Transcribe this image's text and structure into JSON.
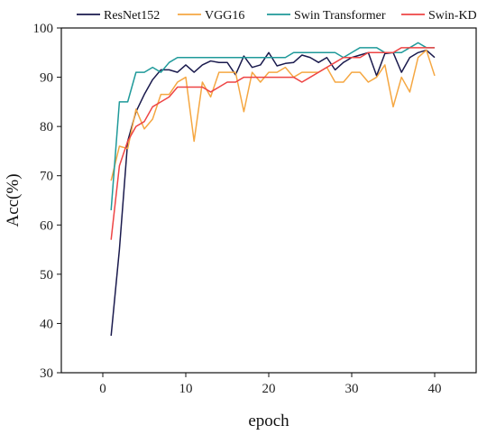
{
  "chart_data": {
    "type": "line",
    "xlabel": "epoch",
    "ylabel": "Acc(%)",
    "xlim": [
      -5,
      45
    ],
    "ylim": [
      30,
      100
    ],
    "xticks": [
      0,
      10,
      20,
      30,
      40
    ],
    "yticks": [
      30,
      40,
      50,
      60,
      70,
      80,
      90,
      100
    ],
    "grid": false,
    "legend_position": "top",
    "x": [
      1,
      2,
      3,
      4,
      5,
      6,
      7,
      8,
      9,
      10,
      11,
      12,
      13,
      14,
      15,
      16,
      17,
      18,
      19,
      20,
      21,
      22,
      23,
      24,
      25,
      26,
      27,
      28,
      29,
      30,
      31,
      32,
      33,
      34,
      35,
      36,
      37,
      38,
      39,
      40
    ],
    "series": [
      {
        "name": "ResNet152",
        "color": "#1a1a4d",
        "values": [
          37.5,
          55,
          77,
          83,
          86.5,
          89.5,
          91.5,
          91.5,
          91,
          92.5,
          91,
          92.5,
          93.3,
          93,
          93,
          90.5,
          94.3,
          92,
          92.5,
          95,
          92.3,
          92.8,
          93,
          94.5,
          94,
          93,
          94,
          91.5,
          93,
          94,
          94.5,
          95,
          90.3,
          94.8,
          95,
          91,
          94,
          95,
          95.5,
          94
        ]
      },
      {
        "name": "VGG16",
        "color": "#f5a742",
        "values": [
          69,
          76,
          75.5,
          83.5,
          79.5,
          81.5,
          86.5,
          86.5,
          89,
          90,
          77,
          89,
          86,
          91,
          91,
          91,
          83,
          91,
          89,
          91,
          91,
          92,
          90,
          91,
          91,
          91,
          92,
          89,
          89,
          91,
          91,
          89,
          90,
          92.5,
          84,
          90,
          87,
          94,
          95.5,
          90.3
        ]
      },
      {
        "name": "Swin Transformer",
        "color": "#1f9a9a",
        "values": [
          63,
          85,
          85,
          91,
          91,
          92,
          91,
          93,
          94,
          94,
          94,
          94,
          94,
          94,
          94,
          94,
          94,
          94,
          94,
          94,
          94,
          94,
          95,
          95,
          95,
          95,
          95,
          95,
          94,
          95,
          96,
          96,
          96,
          95,
          95,
          95,
          96,
          97,
          96,
          96
        ]
      },
      {
        "name": "Swin-KD",
        "color": "#ee4444",
        "values": [
          57,
          72,
          77,
          80,
          81,
          84,
          85,
          86,
          88,
          88,
          88,
          88,
          87,
          88,
          89,
          89,
          90,
          90,
          90,
          90,
          90,
          90,
          90,
          89,
          90,
          91,
          92,
          93,
          94,
          94,
          94,
          95,
          95,
          95,
          95,
          96,
          96,
          96,
          96,
          96
        ]
      }
    ]
  }
}
